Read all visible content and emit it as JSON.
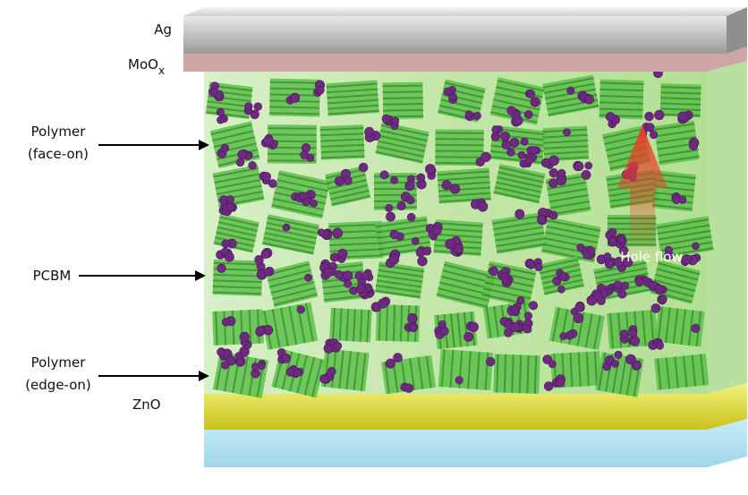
{
  "labels": {
    "ag": "Ag",
    "moox": {
      "base": "MoO",
      "sub": "x"
    },
    "polymer_face_on": {
      "name": "Polymer",
      "orientation": "(face-on)"
    },
    "pcbm": "PCBM",
    "polymer_edge_on": {
      "name": "Polymer",
      "orientation": "(edge-on)"
    },
    "zno": "ZnO",
    "hole_flow": "Hole flow"
  }
}
